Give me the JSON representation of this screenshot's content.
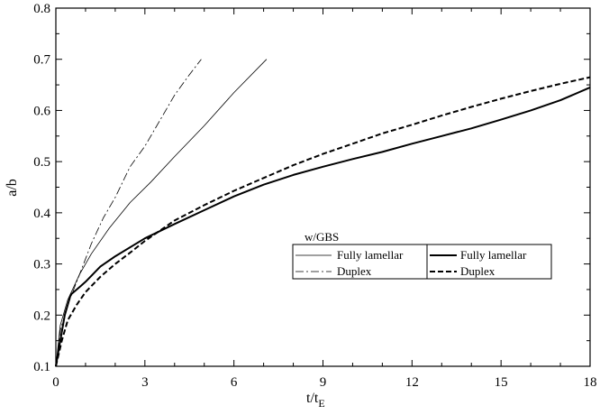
{
  "chart_data": {
    "type": "line",
    "title": "",
    "xlabel": "t/t",
    "xlabel_subscript": "E",
    "ylabel": "a/b",
    "xlim": [
      0,
      18
    ],
    "ylim": [
      0.1,
      0.8
    ],
    "xticks": [
      0,
      3,
      6,
      9,
      12,
      15,
      18
    ],
    "yticks": [
      0.1,
      0.2,
      0.3,
      0.4,
      0.5,
      0.6,
      0.7,
      0.8
    ],
    "xtick_labels": [
      "0",
      "3",
      "6",
      "9",
      "12",
      "15",
      "18"
    ],
    "ytick_labels": [
      "0.1",
      "0.2",
      "0.3",
      "0.4",
      "0.5",
      "0.6",
      "0.7",
      "0.8"
    ],
    "grid": false,
    "legend": {
      "placement": "center-right",
      "heading": "w/GBS",
      "left_entries": [
        "Fully lamellar",
        "Duplex"
      ],
      "right_entries": [
        "Fully lamellar",
        "Duplex"
      ]
    },
    "series": [
      {
        "name": "Fully lamellar",
        "group": "left",
        "style": "thin-solid",
        "x": [
          0,
          0.15,
          0.4,
          0.8,
          1.2,
          1.8,
          2.5,
          3.2,
          4.0,
          5.0,
          6.0,
          7.1
        ],
        "y": [
          0.1,
          0.18,
          0.23,
          0.28,
          0.32,
          0.37,
          0.42,
          0.46,
          0.51,
          0.57,
          0.635,
          0.7
        ]
      },
      {
        "name": "Duplex",
        "group": "left",
        "style": "thin-dashdot",
        "x": [
          0,
          0.15,
          0.4,
          0.8,
          1.2,
          1.6,
          2.0,
          2.5,
          3.0,
          3.5,
          4.0,
          4.5,
          4.9
        ],
        "y": [
          0.1,
          0.17,
          0.22,
          0.28,
          0.34,
          0.39,
          0.43,
          0.49,
          0.53,
          0.58,
          0.63,
          0.67,
          0.7
        ]
      },
      {
        "name": "Fully lamellar",
        "group": "right",
        "style": "thick-solid",
        "x": [
          0,
          0.15,
          0.3,
          0.5,
          0.8,
          1.0,
          1.5,
          2.0,
          3.0,
          4.0,
          5.0,
          6.0,
          7.0,
          8.0,
          9.0,
          10.0,
          11.0,
          12.0,
          13.0,
          14.0,
          15.0,
          16.0,
          17.0,
          18.0
        ],
        "y": [
          0.1,
          0.15,
          0.2,
          0.24,
          0.255,
          0.265,
          0.295,
          0.315,
          0.35,
          0.378,
          0.405,
          0.432,
          0.455,
          0.474,
          0.49,
          0.505,
          0.519,
          0.535,
          0.55,
          0.565,
          0.582,
          0.6,
          0.62,
          0.645
        ]
      },
      {
        "name": "Duplex",
        "group": "right",
        "style": "thick-dashed",
        "x": [
          0,
          0.2,
          0.4,
          0.7,
          1.0,
          1.5,
          2.0,
          2.5,
          3.0,
          4.0,
          5.0,
          6.0,
          7.0,
          8.0,
          9.0,
          10.0,
          11.0,
          12.0,
          13.0,
          14.0,
          15.0,
          16.0,
          17.0,
          18.0
        ],
        "y": [
          0.1,
          0.15,
          0.19,
          0.22,
          0.245,
          0.275,
          0.3,
          0.322,
          0.345,
          0.385,
          0.415,
          0.443,
          0.468,
          0.493,
          0.515,
          0.535,
          0.555,
          0.572,
          0.59,
          0.607,
          0.623,
          0.638,
          0.652,
          0.665
        ]
      }
    ]
  }
}
